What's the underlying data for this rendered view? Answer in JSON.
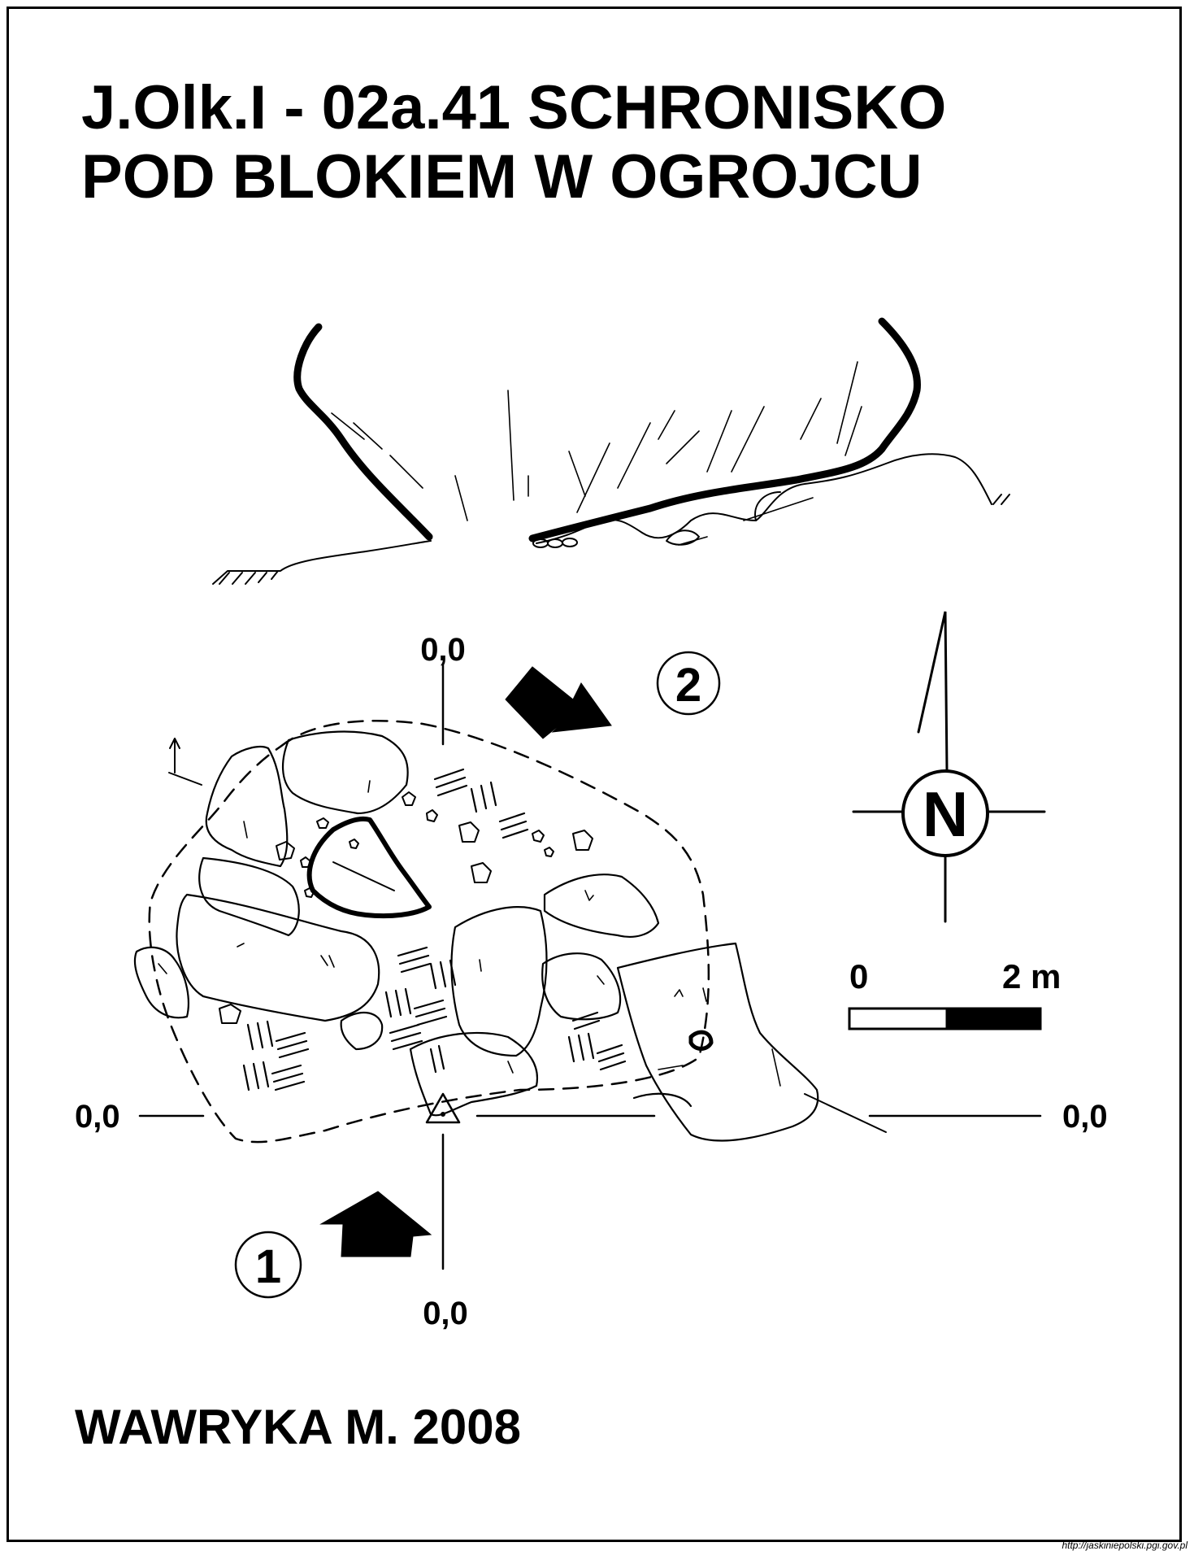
{
  "title": {
    "line1": "J.Olk.I - 02a.41 SCHRONISKO",
    "line2": "POD BLOKIEM W OGROJCU"
  },
  "datum_labels": {
    "top": "0,0",
    "bottom": "0,0",
    "left": "0,0",
    "right": "0,0"
  },
  "section_markers": {
    "one": "1",
    "two": "2"
  },
  "compass": {
    "letter": "N"
  },
  "scale_bar": {
    "start": "0",
    "end": "2 m"
  },
  "author": "WAWRYKA M. 2008",
  "source_url": "http://jaskiniepolski.pgi.gov.pl",
  "colors": {
    "ink": "#000000",
    "paper": "#ffffff"
  }
}
